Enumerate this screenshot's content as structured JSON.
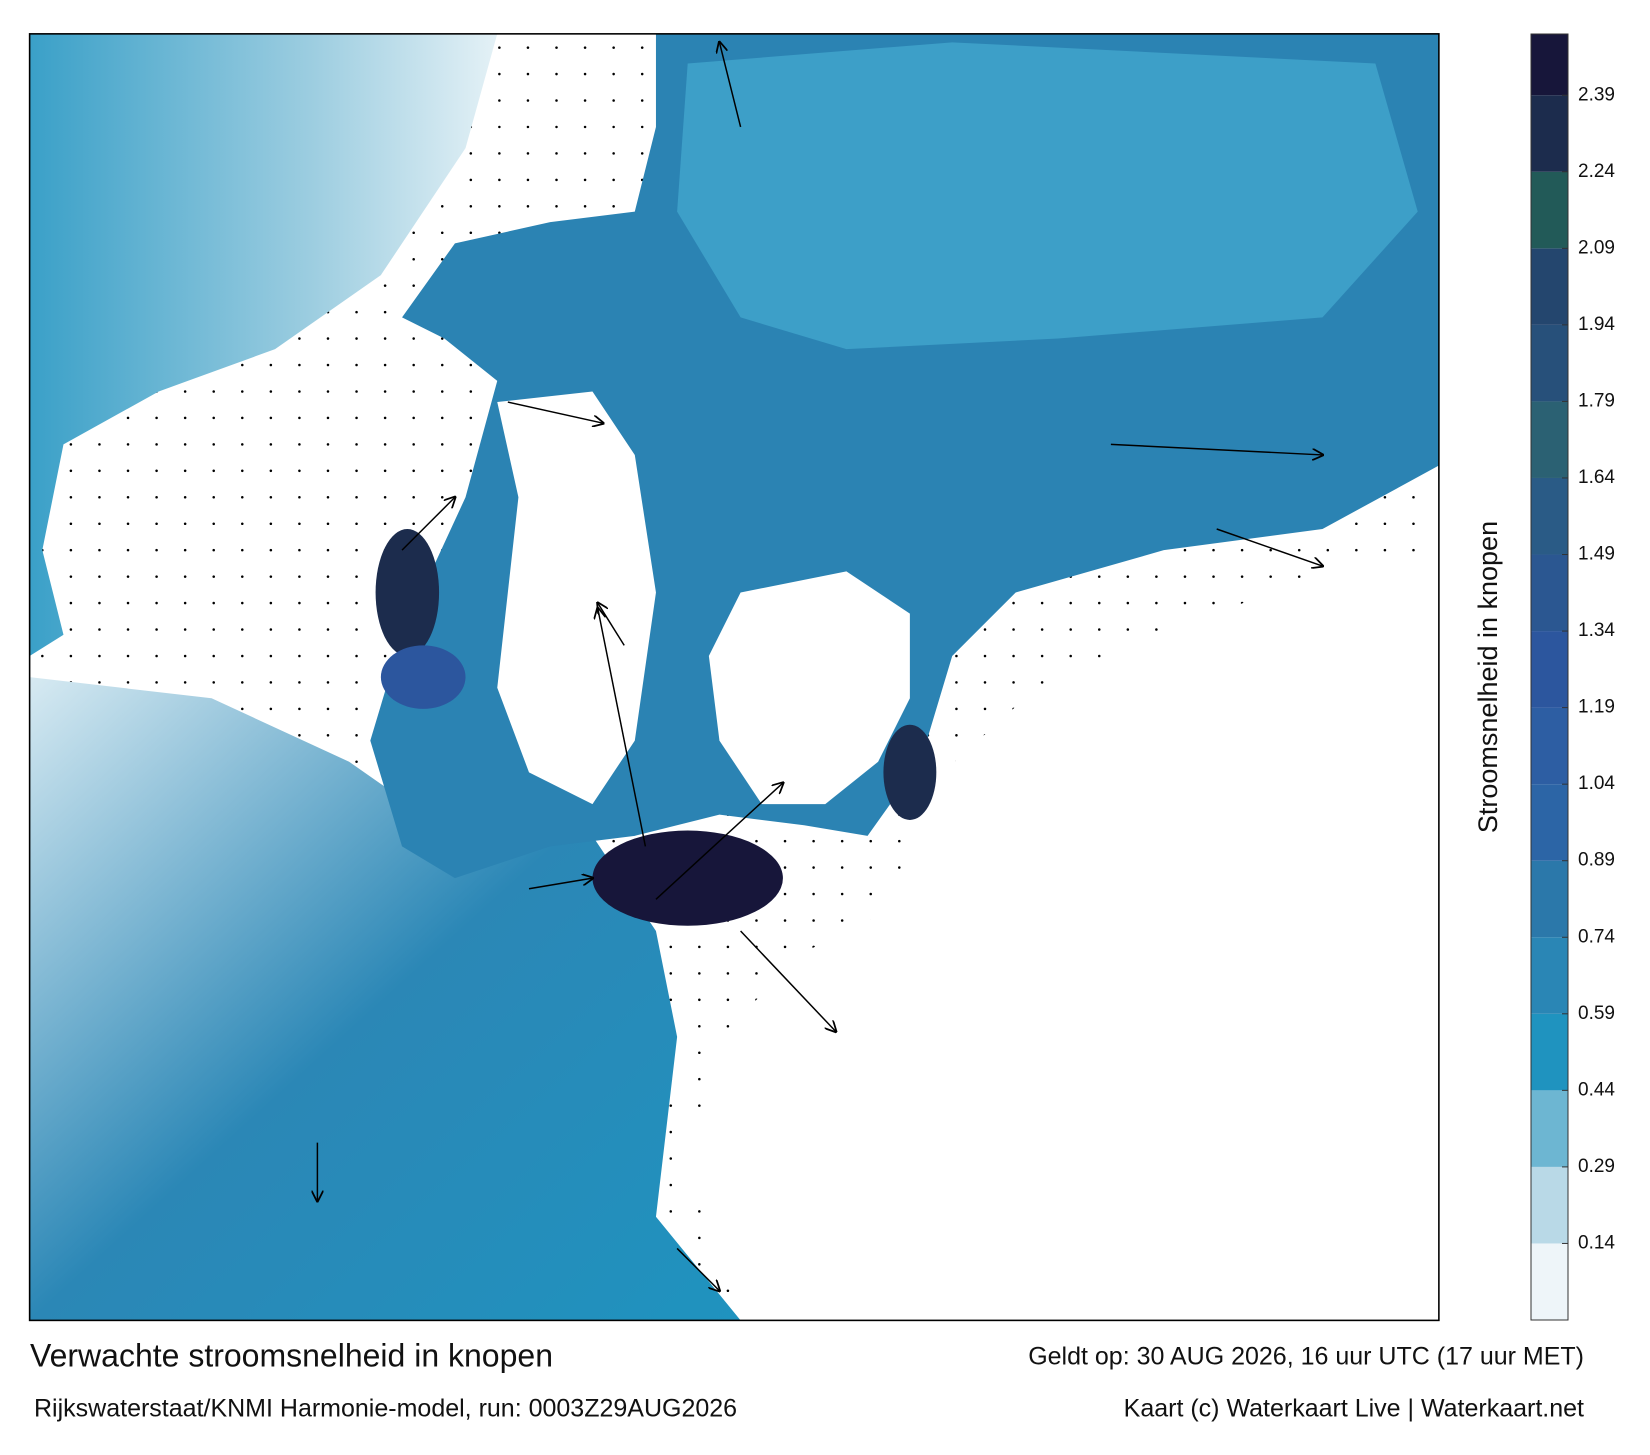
{
  "map": {
    "footer": {
      "title": "Verwachte stroomsnelheid in knopen",
      "valid_time": "Geldt op: 30 AUG 2026, 16 uur UTC (17 uur MET)",
      "model_run": "Rijkswaterstaat/KNMI Harmonie-model, run: 0003Z29AUG2026",
      "credit": "Kaart (c) Waterkaart Live | Waterkaart.net"
    },
    "colorbar": {
      "label": "Stroomsnelheid in knopen",
      "lim": [
        -0.01,
        2.51
      ],
      "ticks": [
        0.14,
        0.29,
        0.44,
        0.59,
        0.74,
        0.89,
        1.04,
        1.19,
        1.34,
        1.49,
        1.64,
        1.79,
        1.94,
        2.09,
        2.24,
        2.39
      ],
      "colors": [
        "#eef5f9",
        "#b9d9e7",
        "#6db6d2",
        "#1f93bf",
        "#2a86b5",
        "#2b78aa",
        "#2c65a6",
        "#2d5ea3",
        "#2c569e",
        "#2b5791",
        "#2a5b86",
        "#2b6173",
        "#27507a",
        "#24466e",
        "#225a58",
        "#1c2c4d",
        "#17163a"
      ]
    }
  }
}
